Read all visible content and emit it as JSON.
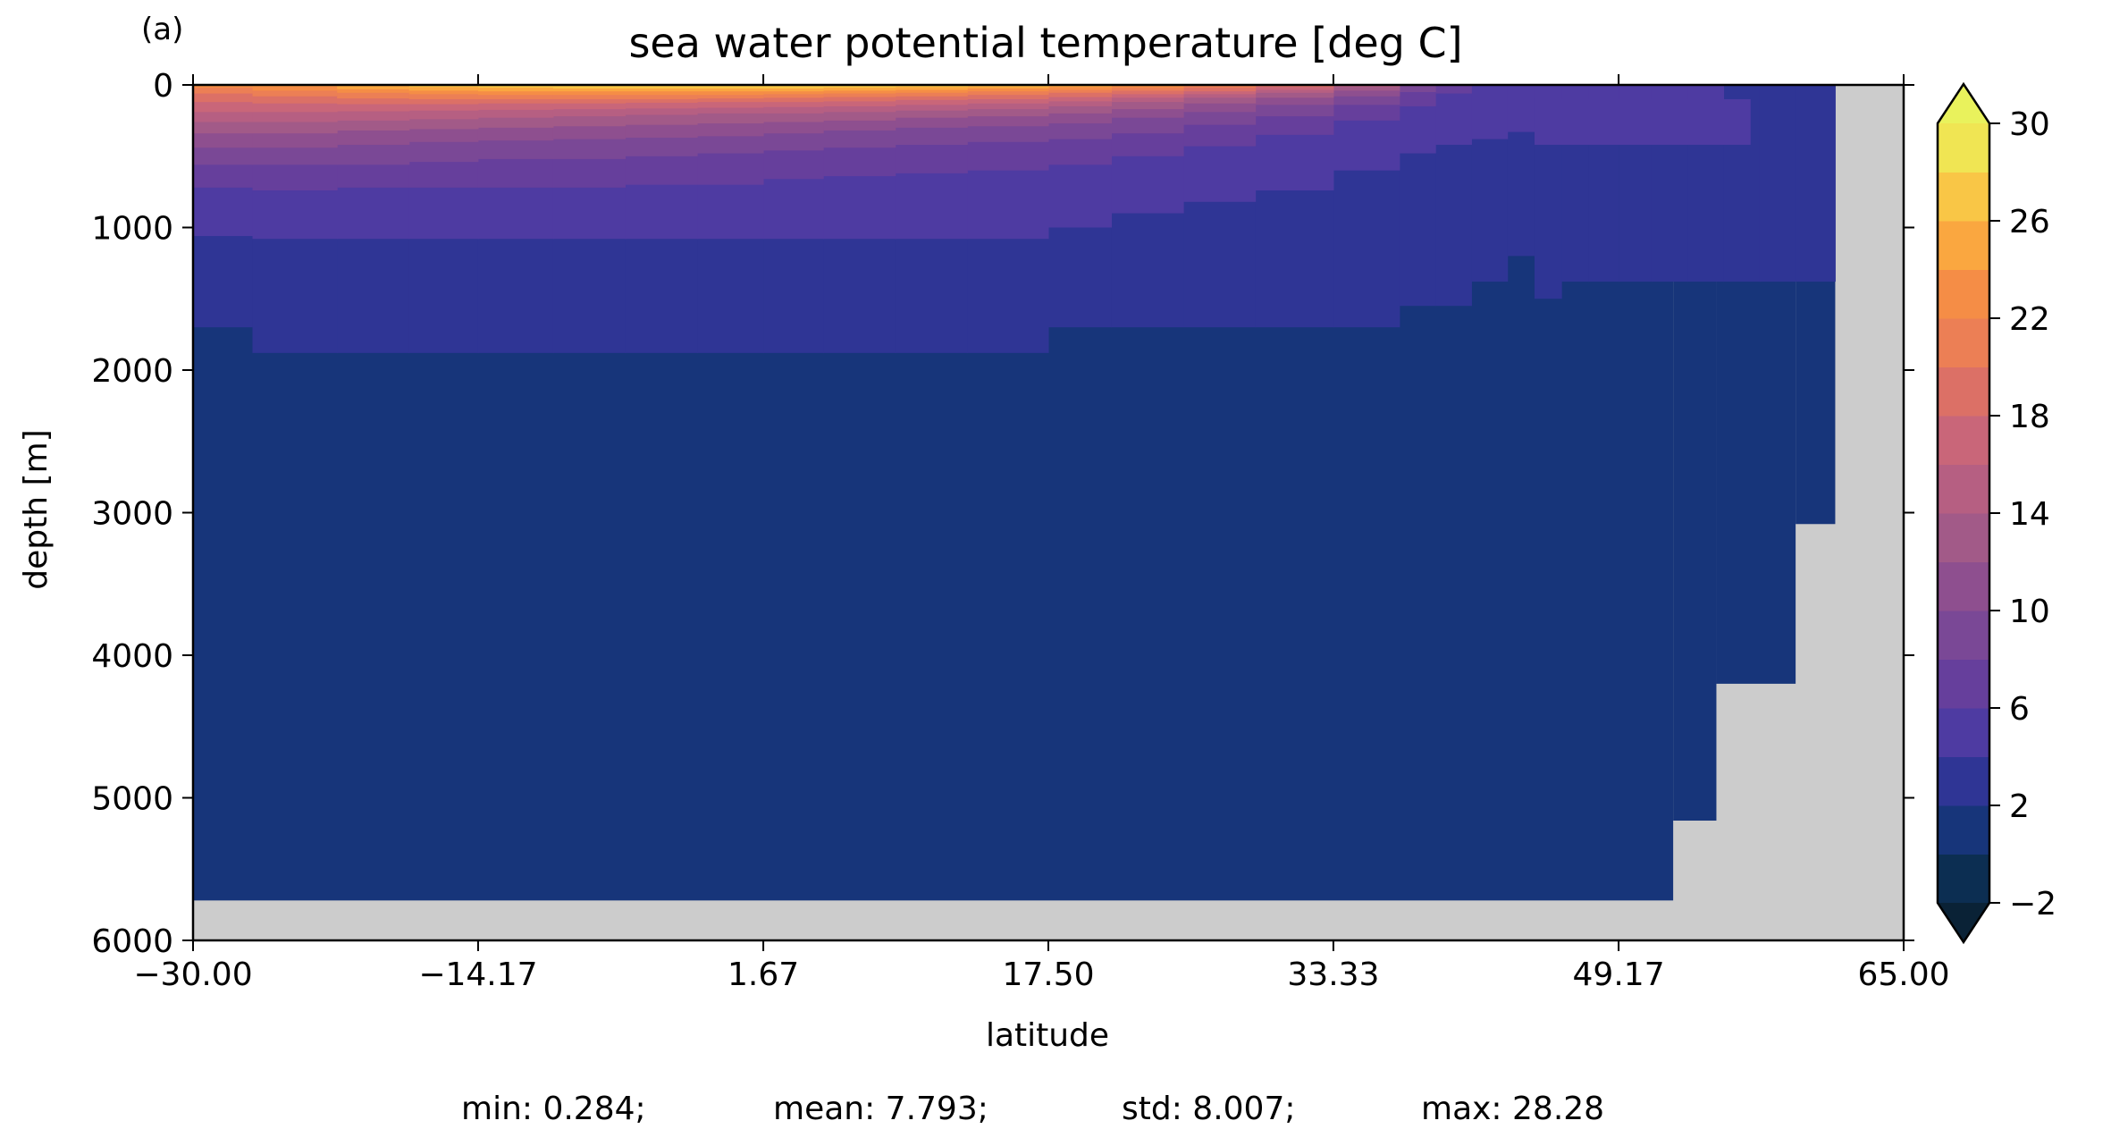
{
  "chart_data": {
    "type": "heatmap",
    "panel_label": "(a)",
    "title": "sea water potential temperature [deg C]",
    "xlabel": "latitude",
    "ylabel": "depth [m]",
    "xlim": [
      -30.0,
      65.0
    ],
    "ylim": [
      6000,
      0
    ],
    "y_inverted": true,
    "x_ticks": [
      -30.0,
      -14.17,
      1.67,
      17.5,
      33.33,
      49.17,
      65.0
    ],
    "x_tick_labels": [
      "−30.00",
      "−14.17",
      "1.67",
      "17.50",
      "33.33",
      "49.17",
      "65.00"
    ],
    "y_ticks": [
      0,
      1000,
      2000,
      3000,
      4000,
      5000,
      6000
    ],
    "y_tick_labels": [
      "0",
      "1000",
      "2000",
      "3000",
      "4000",
      "5000",
      "6000"
    ],
    "colorbar": {
      "levels": [
        -2,
        0,
        2,
        4,
        6,
        8,
        10,
        12,
        14,
        16,
        18,
        20,
        22,
        24,
        26,
        28,
        30
      ],
      "colors": [
        "#0c2e52",
        "#17357a",
        "#2f3595",
        "#4e3ba2",
        "#663f9c",
        "#7a4896",
        "#8e4f8f",
        "#a25a88",
        "#b65f82",
        "#c96679",
        "#dc7066",
        "#ec7f55",
        "#f58d46",
        "#faa740",
        "#f9c646",
        "#f0e553"
      ],
      "under_color": "#0a2236",
      "over_color": "#e9f25c",
      "extend": "both",
      "tick_labels": [
        "−2",
        "2",
        "6",
        "10",
        "14",
        "18",
        "22",
        "26",
        "30"
      ],
      "tick_values": [
        -2,
        2,
        6,
        10,
        14,
        18,
        22,
        26,
        30
      ]
    },
    "land_color": "#cccccc",
    "bottom_depth_m": [
      {
        "from_lat": -30.0,
        "to_lat": 52.2,
        "depth": 5720
      },
      {
        "from_lat": 52.2,
        "to_lat": 54.6,
        "depth": 5160
      },
      {
        "from_lat": 54.6,
        "to_lat": 59.0,
        "depth": 4200
      },
      {
        "from_lat": 59.0,
        "to_lat": 61.2,
        "depth": 3080
      },
      {
        "from_lat": 61.2,
        "to_lat": 65.0,
        "depth": 0
      }
    ],
    "isotherm_depths_m": {
      "lat": [
        -30,
        -26.7,
        -22,
        -18,
        -14.17,
        -10,
        -6,
        -2,
        1.67,
        5,
        9,
        13,
        17.5,
        21,
        25,
        29,
        33.33,
        37,
        39,
        41,
        43,
        44.5,
        46,
        47.5,
        49.17,
        51,
        53,
        55,
        57,
        59,
        61.2
      ],
      "iso_2": [
        1700,
        1880,
        1880,
        1880,
        1880,
        1880,
        1880,
        1880,
        1880,
        1880,
        1880,
        1880,
        1700,
        1700,
        1700,
        1700,
        1700,
        1550,
        1550,
        1380,
        1200,
        1500,
        1380,
        1380,
        1380,
        1380,
        1380,
        1380,
        1380,
        1380,
        1380
      ],
      "iso_4": [
        1060,
        1080,
        1080,
        1080,
        1080,
        1080,
        1080,
        1080,
        1080,
        1080,
        1080,
        1080,
        1000,
        900,
        820,
        740,
        600,
        480,
        420,
        380,
        330,
        300,
        260,
        230,
        220,
        250,
        300,
        0,
        0,
        0,
        0
      ],
      "iso_6": [
        720,
        740,
        720,
        720,
        720,
        720,
        700,
        700,
        660,
        640,
        620,
        600,
        560,
        500,
        430,
        350,
        250,
        150,
        60,
        0,
        0,
        0,
        0,
        0,
        0,
        0,
        0,
        0,
        0,
        0,
        0
      ],
      "iso_8": [
        560,
        560,
        560,
        540,
        520,
        520,
        500,
        480,
        460,
        440,
        420,
        400,
        380,
        340,
        280,
        220,
        140,
        50,
        0,
        0,
        0,
        0,
        0,
        0,
        0,
        0,
        0,
        0,
        0,
        0,
        0
      ],
      "iso_10": [
        440,
        440,
        420,
        400,
        390,
        380,
        370,
        360,
        340,
        320,
        300,
        290,
        270,
        230,
        190,
        140,
        80,
        0,
        0,
        0,
        0,
        0,
        0,
        0,
        0,
        0,
        0,
        0,
        0,
        0,
        0
      ],
      "iso_12": [
        340,
        340,
        320,
        310,
        300,
        290,
        280,
        270,
        260,
        250,
        230,
        220,
        200,
        170,
        130,
        90,
        40,
        0,
        0,
        0,
        0,
        0,
        0,
        0,
        0,
        0,
        0,
        0,
        0,
        0,
        0
      ],
      "iso_14": [
        260,
        260,
        250,
        240,
        230,
        220,
        210,
        200,
        200,
        190,
        180,
        170,
        150,
        120,
        90,
        55,
        15,
        0,
        0,
        0,
        0,
        0,
        0,
        0,
        0,
        0,
        0,
        0,
        0,
        0,
        0
      ],
      "iso_16": [
        190,
        190,
        185,
        180,
        175,
        170,
        165,
        160,
        155,
        150,
        140,
        130,
        115,
        90,
        65,
        35,
        0,
        0,
        0,
        0,
        0,
        0,
        0,
        0,
        0,
        0,
        0,
        0,
        0,
        0,
        0
      ],
      "iso_18": [
        120,
        130,
        135,
        135,
        130,
        130,
        125,
        120,
        120,
        115,
        105,
        100,
        85,
        65,
        45,
        15,
        0,
        0,
        0,
        0,
        0,
        0,
        0,
        0,
        0,
        0,
        0,
        0,
        0,
        0,
        0
      ],
      "iso_20": [
        60,
        80,
        95,
        100,
        100,
        100,
        100,
        95,
        90,
        85,
        80,
        70,
        55,
        40,
        20,
        0,
        0,
        0,
        0,
        0,
        0,
        0,
        0,
        0,
        0,
        0,
        0,
        0,
        0,
        0,
        0
      ],
      "iso_22": [
        20,
        40,
        55,
        65,
        70,
        70,
        70,
        70,
        65,
        60,
        55,
        45,
        35,
        20,
        5,
        0,
        0,
        0,
        0,
        0,
        0,
        0,
        0,
        0,
        0,
        0,
        0,
        0,
        0,
        0,
        0
      ],
      "iso_24": [
        0,
        10,
        30,
        40,
        45,
        45,
        45,
        45,
        45,
        40,
        35,
        25,
        15,
        5,
        0,
        0,
        0,
        0,
        0,
        0,
        0,
        0,
        0,
        0,
        0,
        0,
        0,
        0,
        0,
        0,
        0
      ],
      "iso_26": [
        0,
        0,
        5,
        15,
        20,
        25,
        25,
        25,
        25,
        20,
        15,
        10,
        0,
        0,
        0,
        0,
        0,
        0,
        0,
        0,
        0,
        0,
        0,
        0,
        0,
        0,
        0,
        0,
        0,
        0,
        0
      ]
    },
    "subpolar_cold_patch": {
      "from_lat": 44.5,
      "to_lat": 56.5,
      "top_depth": 100,
      "bottom_depth": 420,
      "level_index": 3
    },
    "stats": {
      "min": "min: 0.284;",
      "mean": "mean: 7.793;",
      "std": "std: 8.007;",
      "max": "max: 28.28"
    }
  }
}
